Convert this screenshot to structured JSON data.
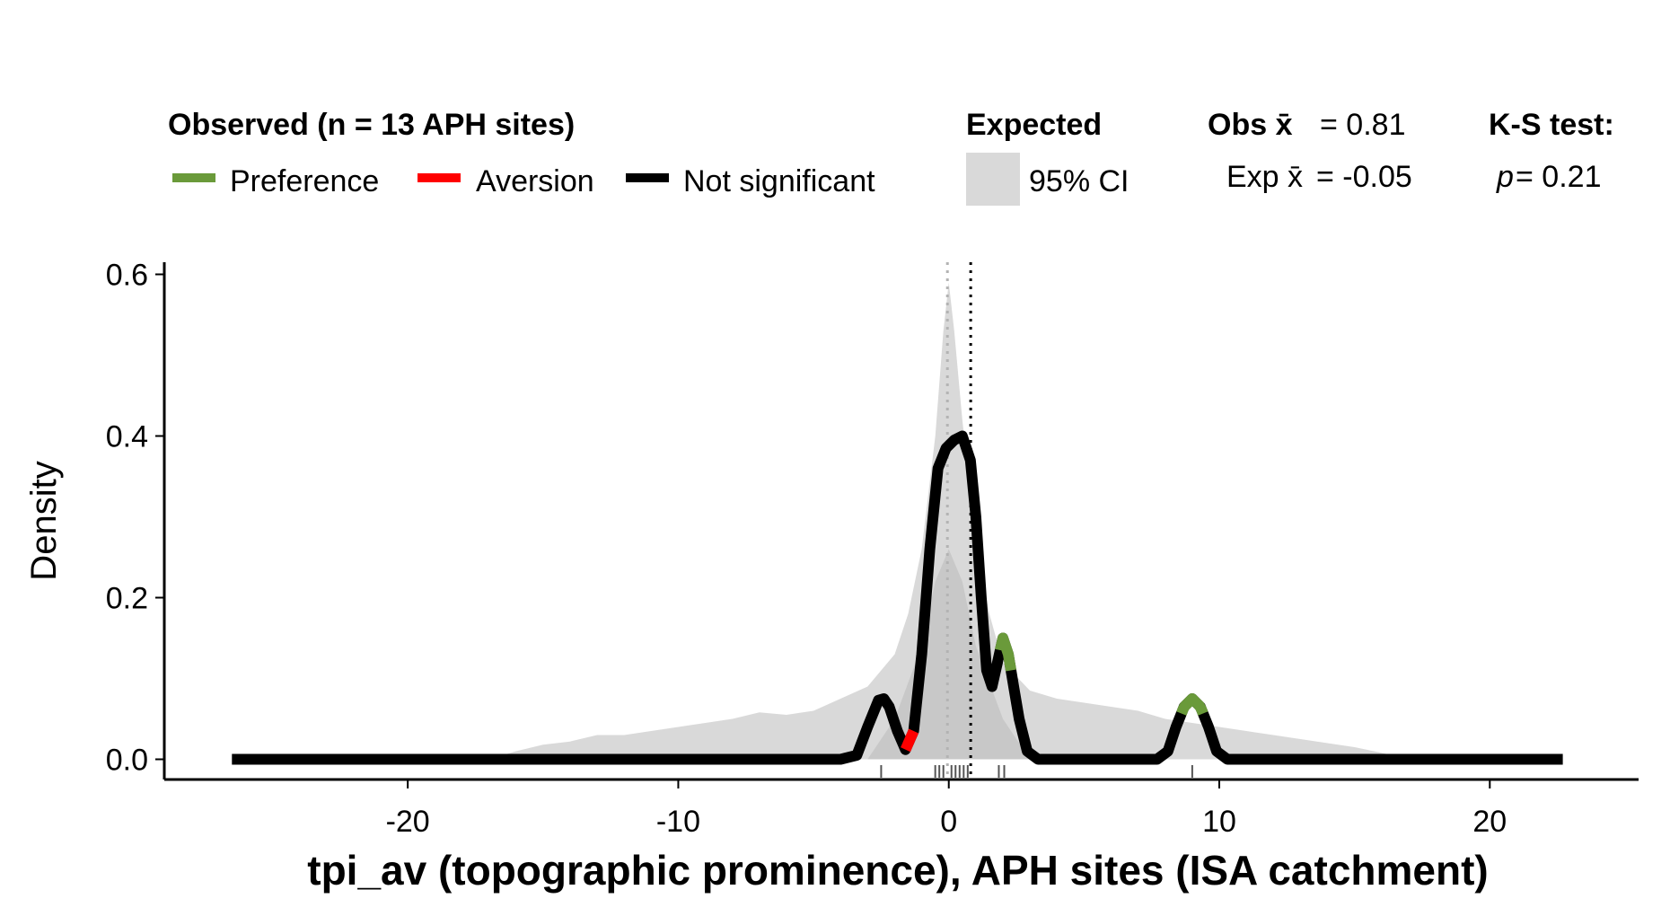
{
  "legend": {
    "observed_title": "Observed (n = 13 APH sites)",
    "items": [
      {
        "label": "Preference",
        "color": "#6a9a3a"
      },
      {
        "label": "Aversion",
        "color": "#ff0000"
      },
      {
        "label": "Not significant",
        "color": "#000000"
      }
    ],
    "expected_title": "Expected",
    "ci_label": "95% CI",
    "ci_color": "#d9d9d9",
    "obs_mean_label": "Obs x̄",
    "obs_mean_value": "= 0.81",
    "exp_mean_label": "Exp x̄",
    "exp_mean_value": "= -0.05",
    "ks_title": "K-S test:",
    "ks_p_symbol": "p",
    "ks_p_value": "= 0.21"
  },
  "chart_data": {
    "type": "area",
    "xlabel": "tpi_av (topographic prominence), APH sites (ISA catchment)",
    "ylabel": "Density",
    "xlim": [
      -29,
      25.5
    ],
    "ylim": [
      -0.025,
      0.615
    ],
    "xticks": [
      -20,
      -10,
      0,
      10,
      20
    ],
    "yticks": [
      0.0,
      0.2,
      0.4,
      0.6
    ],
    "xtick_labels": [
      "-20",
      "-10",
      "0",
      "10",
      "20"
    ],
    "ytick_labels": [
      "0.0",
      "0.2",
      "0.4",
      "0.6"
    ],
    "obs_mean": 0.81,
    "exp_mean": -0.05,
    "expected_ci": {
      "x": [
        -17,
        -16,
        -15,
        -14,
        -13,
        -12,
        -11,
        -10,
        -9,
        -8,
        -7,
        -6,
        -5,
        -4,
        -3,
        -2,
        -1.5,
        -1,
        -0.5,
        -0.2,
        0,
        0.2,
        0.5,
        1,
        1.5,
        2,
        3,
        4,
        5,
        6,
        7,
        8,
        9,
        10,
        11,
        12,
        13,
        14,
        15,
        16,
        17
      ],
      "upper": [
        0.0,
        0.01,
        0.018,
        0.022,
        0.03,
        0.03,
        0.035,
        0.04,
        0.045,
        0.05,
        0.058,
        0.055,
        0.06,
        0.075,
        0.09,
        0.13,
        0.18,
        0.26,
        0.4,
        0.53,
        0.59,
        0.53,
        0.42,
        0.27,
        0.18,
        0.12,
        0.085,
        0.075,
        0.07,
        0.065,
        0.06,
        0.05,
        0.045,
        0.04,
        0.035,
        0.03,
        0.025,
        0.02,
        0.015,
        0.008,
        0.0
      ],
      "lower": [
        0,
        0,
        0,
        0,
        0,
        0,
        0,
        0,
        0,
        0,
        0,
        0,
        0,
        0,
        0,
        0,
        0.005,
        0.03,
        0.07,
        0.1,
        0.11,
        0.1,
        0.07,
        0.03,
        0.005,
        0,
        0,
        0,
        0,
        0,
        0,
        0,
        0,
        0,
        0,
        0,
        0,
        0,
        0,
        0,
        0
      ]
    },
    "expected_inner": {
      "x": [
        -3,
        -2,
        -1,
        -0.5,
        0,
        0.5,
        1,
        2,
        3
      ],
      "upper": [
        0.0,
        0.05,
        0.14,
        0.22,
        0.26,
        0.22,
        0.14,
        0.05,
        0.0
      ]
    },
    "observed_density": {
      "x": [
        -26.5,
        -4,
        -3.4,
        -3,
        -2.6,
        -2.4,
        -2.2,
        -1.9,
        -1.6,
        -1.3,
        -1.0,
        -0.7,
        -0.4,
        -0.1,
        0.2,
        0.5,
        0.8,
        1.0,
        1.2,
        1.4,
        1.6,
        1.8,
        2.0,
        2.2,
        2.4,
        2.6,
        2.9,
        3.3,
        7.7,
        8.1,
        8.4,
        8.7,
        9.0,
        9.3,
        9.6,
        9.9,
        10.3,
        22.7
      ],
      "y": [
        0.0,
        0.0,
        0.005,
        0.04,
        0.073,
        0.075,
        0.065,
        0.035,
        0.012,
        0.035,
        0.13,
        0.26,
        0.36,
        0.385,
        0.395,
        0.4,
        0.37,
        0.3,
        0.2,
        0.11,
        0.09,
        0.12,
        0.15,
        0.13,
        0.09,
        0.05,
        0.01,
        0.0,
        0.0,
        0.01,
        0.04,
        0.065,
        0.075,
        0.065,
        0.04,
        0.01,
        0.0,
        0.0
      ]
    },
    "preference_segments": [
      [
        1.9,
        2.3
      ],
      [
        8.6,
        9.4
      ]
    ],
    "aversion_segments": [
      [
        -1.6,
        -1.3
      ]
    ],
    "rug_x": [
      -2.5,
      -0.5,
      -0.35,
      -0.2,
      0.1,
      0.25,
      0.4,
      0.55,
      0.7,
      1.85,
      2.05,
      9.0
    ]
  }
}
